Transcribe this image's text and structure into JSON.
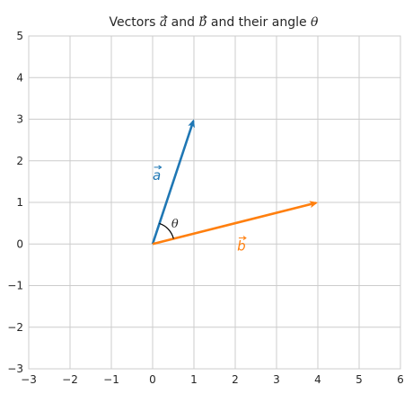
{
  "chart_data": {
    "type": "line",
    "title_parts": [
      "Vectors ",
      "a",
      " and ",
      "b",
      " and their angle ",
      "θ"
    ],
    "xlim": [
      -3,
      6
    ],
    "ylim": [
      -3,
      5
    ],
    "x_ticks": [
      "−3",
      "−2",
      "−1",
      "0",
      "1",
      "2",
      "3",
      "4",
      "5",
      "6"
    ],
    "y_ticks": [
      "−3",
      "−2",
      "−1",
      "0",
      "1",
      "2",
      "3",
      "4",
      "5"
    ],
    "grid": true,
    "vectors": [
      {
        "name": "a",
        "label": "a",
        "from": [
          0,
          0
        ],
        "to": [
          1,
          3
        ],
        "color": "#1f77b4",
        "label_at": [
          0.1,
          1.65
        ]
      },
      {
        "name": "b",
        "label": "b",
        "from": [
          0,
          0
        ],
        "to": [
          4,
          1
        ],
        "color": "#ff7f0e",
        "label_at": [
          2.15,
          -0.05
        ]
      }
    ],
    "angle_label": "θ"
  }
}
